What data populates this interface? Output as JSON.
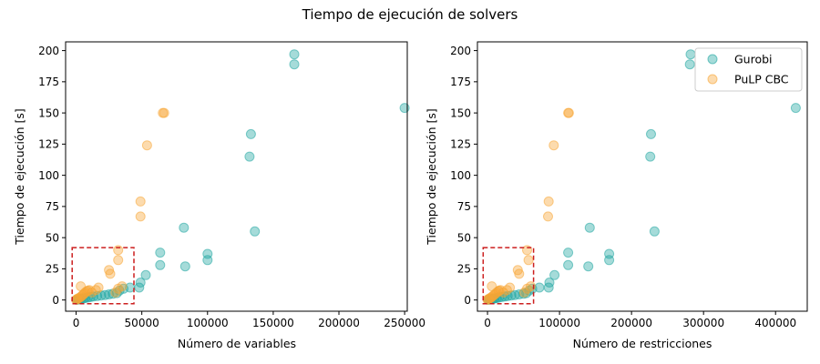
{
  "figure": {
    "suptitle": "Tiempo de ejecución de solvers"
  },
  "colors": {
    "gurobi": "#1fa5a0",
    "pulp": "#f7a535",
    "highlight_box": "#cc1f1f",
    "axis": "#000000"
  },
  "chart_data": [
    {
      "type": "scatter",
      "xlabel": "Número de variables",
      "ylabel": "Tiempo de ejecución [s]",
      "xlim": [
        -8000,
        252000
      ],
      "ylim": [
        -9,
        207
      ],
      "xticks": [
        0,
        50000,
        100000,
        150000,
        200000,
        250000
      ],
      "xtick_labels": [
        "0",
        "50000",
        "100000",
        "150000",
        "200000",
        "250000"
      ],
      "yticks": [
        0,
        25,
        50,
        75,
        100,
        125,
        150,
        175,
        200
      ],
      "ytick_labels": [
        "0",
        "25",
        "50",
        "75",
        "100",
        "125",
        "150",
        "175",
        "200"
      ],
      "highlight_region": {
        "x": [
          -3000,
          44000
        ],
        "y": [
          -3,
          42
        ]
      },
      "series": [
        {
          "color": "#1fa5a0",
          "points": [
            [
              500,
              0.2
            ],
            [
              1200,
              0.4
            ],
            [
              2000,
              0.6
            ],
            [
              3000,
              0.8
            ],
            [
              4000,
              1
            ],
            [
              5500,
              1.3
            ],
            [
              7000,
              1.6
            ],
            [
              9000,
              2
            ],
            [
              11000,
              2.4
            ],
            [
              13000,
              2.8
            ],
            [
              16000,
              3.2
            ],
            [
              19000,
              3.6
            ],
            [
              22000,
              4
            ],
            [
              25000,
              4.5
            ],
            [
              28000,
              5
            ],
            [
              31000,
              5.5
            ],
            [
              33000,
              7.5
            ],
            [
              36000,
              9
            ],
            [
              41000,
              10
            ],
            [
              48000,
              10
            ],
            [
              49000,
              14
            ],
            [
              53000,
              20
            ],
            [
              64000,
              28
            ],
            [
              64000,
              38
            ],
            [
              82000,
              58
            ],
            [
              83000,
              27
            ],
            [
              100000,
              32
            ],
            [
              100000,
              37
            ],
            [
              132000,
              115
            ],
            [
              133000,
              133
            ],
            [
              136000,
              55
            ],
            [
              166000,
              189
            ],
            [
              166000,
              197
            ],
            [
              250000,
              154
            ]
          ]
        },
        {
          "color": "#f7a535",
          "points": [
            [
              0,
              0.2
            ],
            [
              500,
              0.5
            ],
            [
              1000,
              1
            ],
            [
              2000,
              1.5
            ],
            [
              3000,
              2
            ],
            [
              4000,
              3
            ],
            [
              5000,
              4
            ],
            [
              6000,
              5
            ],
            [
              7000,
              6
            ],
            [
              8000,
              7
            ],
            [
              9000,
              7.5
            ],
            [
              10000,
              8
            ],
            [
              3500,
              11
            ],
            [
              12000,
              6
            ],
            [
              15000,
              8
            ],
            [
              17000,
              10
            ],
            [
              25000,
              24
            ],
            [
              26000,
              21
            ],
            [
              30000,
              6
            ],
            [
              32000,
              9
            ],
            [
              35000,
              11
            ],
            [
              32000,
              40
            ],
            [
              32000,
              32
            ],
            [
              49000,
              67
            ],
            [
              49000,
              79
            ],
            [
              54000,
              124
            ],
            [
              66000,
              150
            ],
            [
              67000,
              150
            ]
          ]
        }
      ]
    },
    {
      "type": "scatter",
      "xlabel": "Número de restricciones",
      "ylabel": "Tiempo de ejecución [s]",
      "xlim": [
        -14000,
        444000
      ],
      "ylim": [
        -9,
        207
      ],
      "xticks": [
        0,
        100000,
        200000,
        300000,
        400000
      ],
      "xtick_labels": [
        "0",
        "100000",
        "200000",
        "300000",
        "400000"
      ],
      "yticks": [
        0,
        25,
        50,
        75,
        100,
        125,
        150,
        175,
        200
      ],
      "ytick_labels": [
        "0",
        "25",
        "50",
        "75",
        "100",
        "125",
        "150",
        "175",
        "200"
      ],
      "legend": {
        "placement": "top-right",
        "entries": [
          "Gurobi",
          "PuLP CBC"
        ]
      },
      "highlight_region": {
        "x": [
          -6000,
          64000
        ],
        "y": [
          -3,
          42
        ]
      },
      "series": [
        {
          "name": "Gurobi",
          "color": "#1fa5a0",
          "points": [
            [
              1000,
              0.2
            ],
            [
              2500,
              0.4
            ],
            [
              4000,
              0.6
            ],
            [
              6000,
              0.8
            ],
            [
              8000,
              1
            ],
            [
              10000,
              1.3
            ],
            [
              13000,
              1.6
            ],
            [
              16000,
              2
            ],
            [
              20000,
              2.4
            ],
            [
              24000,
              2.8
            ],
            [
              28000,
              3.2
            ],
            [
              33000,
              3.6
            ],
            [
              38000,
              4
            ],
            [
              44000,
              4.5
            ],
            [
              50000,
              5
            ],
            [
              54000,
              5.5
            ],
            [
              58000,
              7.5
            ],
            [
              62000,
              9
            ],
            [
              72000,
              10
            ],
            [
              85000,
              10
            ],
            [
              86000,
              14
            ],
            [
              93000,
              20
            ],
            [
              112000,
              28
            ],
            [
              112000,
              38
            ],
            [
              142000,
              58
            ],
            [
              140000,
              27
            ],
            [
              169000,
              32
            ],
            [
              169000,
              37
            ],
            [
              226000,
              115
            ],
            [
              227000,
              133
            ],
            [
              232000,
              55
            ],
            [
              281000,
              189
            ],
            [
              282000,
              197
            ],
            [
              428000,
              154
            ]
          ]
        },
        {
          "name": "PuLP CBC",
          "color": "#f7a535",
          "points": [
            [
              0,
              0.2
            ],
            [
              1000,
              0.5
            ],
            [
              2000,
              1
            ],
            [
              4000,
              1.5
            ],
            [
              5000,
              2
            ],
            [
              7000,
              3
            ],
            [
              9000,
              4
            ],
            [
              11000,
              5
            ],
            [
              13000,
              6
            ],
            [
              15000,
              7
            ],
            [
              16000,
              7.5
            ],
            [
              18000,
              8
            ],
            [
              6000,
              11
            ],
            [
              22000,
              6
            ],
            [
              27000,
              8
            ],
            [
              31000,
              10
            ],
            [
              42000,
              24
            ],
            [
              44000,
              21
            ],
            [
              51000,
              6
            ],
            [
              55000,
              9
            ],
            [
              60000,
              11
            ],
            [
              55000,
              40
            ],
            [
              57000,
              32
            ],
            [
              84000,
              67
            ],
            [
              85000,
              79
            ],
            [
              92000,
              124
            ],
            [
              112000,
              150
            ],
            [
              113000,
              150
            ]
          ]
        }
      ]
    }
  ]
}
